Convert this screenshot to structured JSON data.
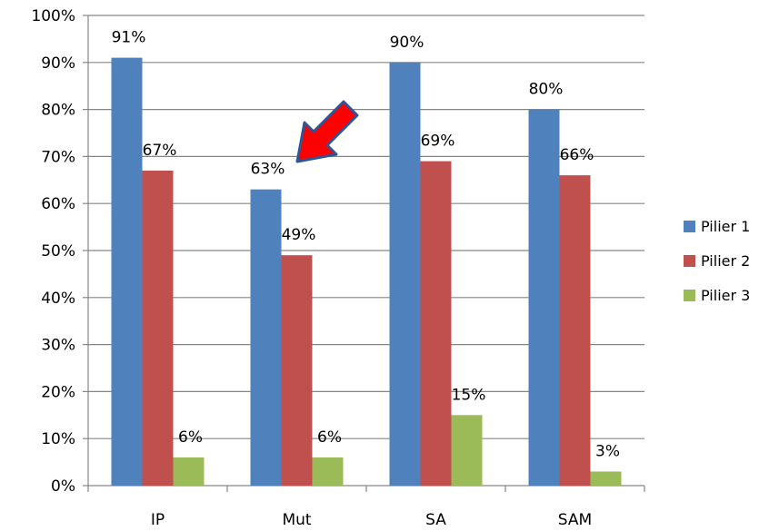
{
  "chart_data": {
    "type": "bar",
    "categories": [
      "IP",
      "Mut",
      "SA",
      "SAM"
    ],
    "series": [
      {
        "name": "Pilier 1",
        "values": [
          91,
          63,
          90,
          80
        ],
        "labels": [
          "91%",
          "63%",
          "90%",
          "80%"
        ],
        "color": "#4f81bd"
      },
      {
        "name": "Pilier 2",
        "values": [
          67,
          49,
          69,
          66
        ],
        "labels": [
          "67%",
          "49%",
          "69%",
          "66%"
        ],
        "color": "#c0504d"
      },
      {
        "name": "Pilier 3",
        "values": [
          6,
          6,
          15,
          3
        ],
        "labels": [
          "6%",
          "6%",
          "15%",
          "3%"
        ],
        "color": "#9bbb59"
      }
    ],
    "ylim": [
      0,
      100
    ],
    "yticks": [
      "0%",
      "10%",
      "20%",
      "30%",
      "40%",
      "50%",
      "60%",
      "70%",
      "80%",
      "90%",
      "100%"
    ],
    "grid": true,
    "legend_position": "right",
    "annotation": {
      "type": "arrow",
      "color": "#ff0000",
      "points_to": "Mut / Pilier 1"
    }
  }
}
